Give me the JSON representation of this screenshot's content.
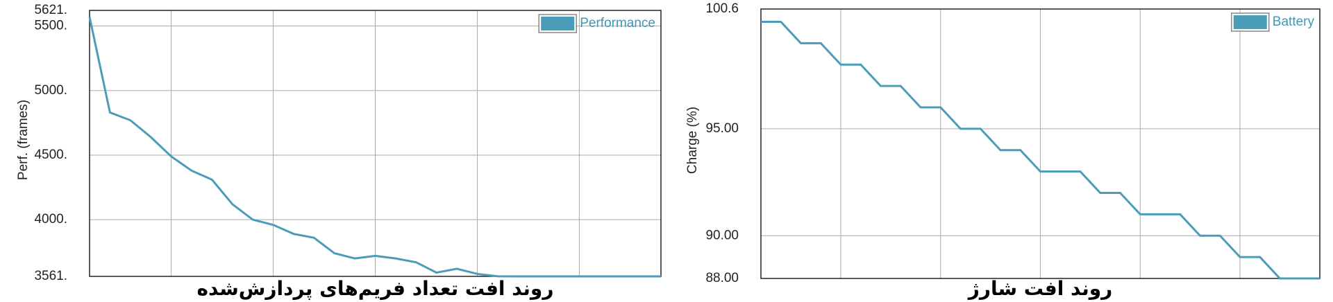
{
  "chart_data": [
    {
      "type": "line",
      "title": "روند افت تعداد فریم‌های پردازش‌شده",
      "y_label": "Perf. (frames)",
      "series": [
        {
          "name": "Performance",
          "color": "#4a9cb8",
          "values": [
            5570,
            4830,
            4770,
            4640,
            4490,
            4380,
            4310,
            4120,
            4000,
            3960,
            3890,
            3860,
            3740,
            3700,
            3720,
            3700,
            3670,
            3590,
            3620,
            3580,
            3562,
            3561,
            3561,
            3561,
            3561,
            3561,
            3561,
            3561,
            3561
          ]
        }
      ],
      "ylim": [
        3561,
        5621
      ],
      "yticks": [
        {
          "value": 3561,
          "label": "3561."
        },
        {
          "value": 4000,
          "label": "4000."
        },
        {
          "value": 4500,
          "label": "4500."
        },
        {
          "value": 5000,
          "label": "5000."
        },
        {
          "value": 5500,
          "label": "5500."
        },
        {
          "value": 5621,
          "label": "5621."
        }
      ],
      "grid": true,
      "legend": "top-right"
    },
    {
      "type": "line",
      "title": "روند افت شارژ",
      "y_label": "Charge (%)",
      "series": [
        {
          "name": "Battery",
          "color": "#4a9cb8",
          "values": [
            100,
            100,
            99,
            99,
            98,
            98,
            97,
            97,
            96,
            96,
            95,
            95,
            94,
            94,
            93,
            93,
            93,
            92,
            92,
            91,
            91,
            91,
            90,
            90,
            89,
            89,
            88,
            88,
            88
          ]
        }
      ],
      "ylim": [
        88,
        100.6
      ],
      "yticks": [
        {
          "value": 88,
          "label": "88.00"
        },
        {
          "value": 90,
          "label": "90.00"
        },
        {
          "value": 95,
          "label": "95.00"
        },
        100.6
      ],
      "grid": true,
      "legend": "top-right"
    }
  ]
}
